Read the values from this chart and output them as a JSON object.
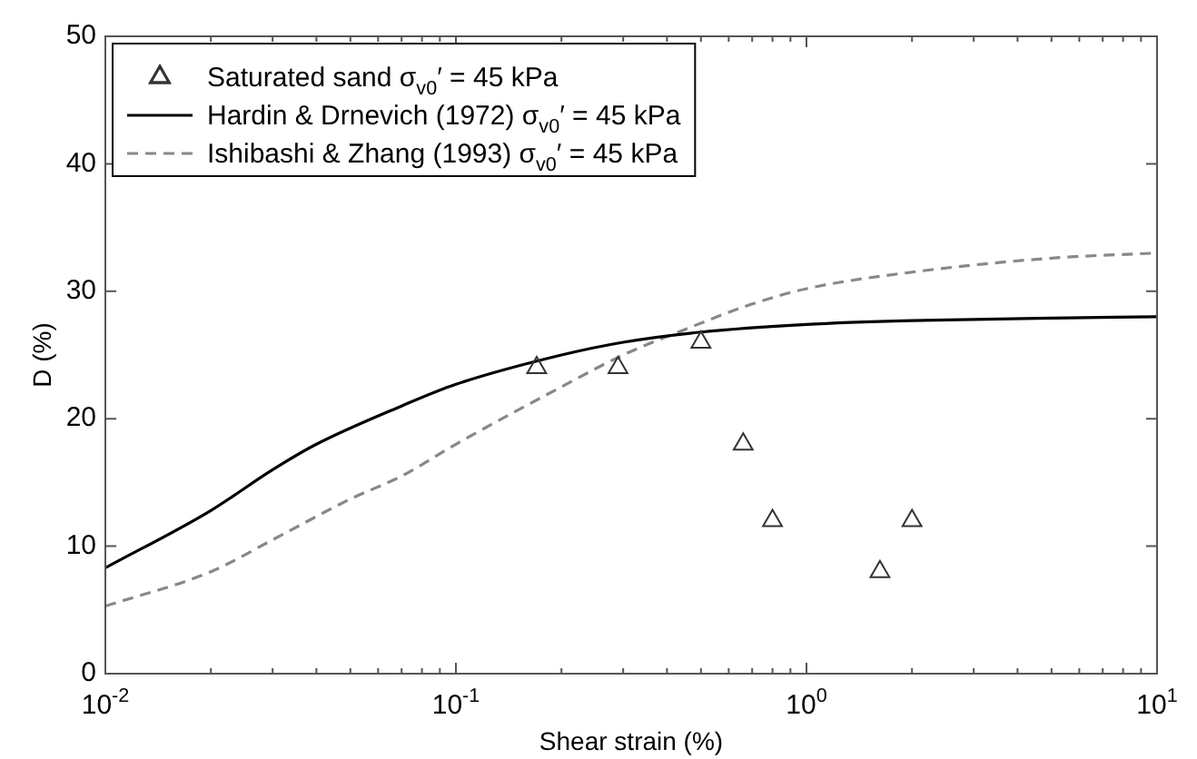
{
  "chart_data": {
    "type": "line",
    "xlabel": "Shear strain (%)",
    "ylabel": "D (%)",
    "log": "x",
    "xlim": [
      0.01,
      10
    ],
    "ylim": [
      0,
      50
    ],
    "xticks": [
      {
        "value": 0.01,
        "label": "10$^{-2}$"
      },
      {
        "value": 0.02,
        "label": null
      },
      {
        "value": 0.03,
        "label": null
      },
      {
        "value": 0.04,
        "label": null
      },
      {
        "value": 0.05,
        "label": null
      },
      {
        "value": 0.06,
        "label": null
      },
      {
        "value": 0.07,
        "label": null
      },
      {
        "value": 0.08,
        "label": null
      },
      {
        "value": 0.09,
        "label": null
      },
      {
        "value": 0.1,
        "label": "10$^{-1}$"
      },
      {
        "value": 0.2,
        "label": null
      },
      {
        "value": 0.3,
        "label": null
      },
      {
        "value": 0.4,
        "label": null
      },
      {
        "value": 0.5,
        "label": null
      },
      {
        "value": 0.6,
        "label": null
      },
      {
        "value": 0.7,
        "label": null
      },
      {
        "value": 0.8,
        "label": null
      },
      {
        "value": 0.9,
        "label": null
      },
      {
        "value": 1,
        "label": "10$^{0}$"
      },
      {
        "value": 2,
        "label": null
      },
      {
        "value": 3,
        "label": null
      },
      {
        "value": 4,
        "label": null
      },
      {
        "value": 5,
        "label": null
      },
      {
        "value": 6,
        "label": null
      },
      {
        "value": 7,
        "label": null
      },
      {
        "value": 8,
        "label": null
      },
      {
        "value": 9,
        "label": null
      },
      {
        "value": 10,
        "label": "10$^{1}$"
      }
    ],
    "yticks": [
      0,
      10,
      20,
      30,
      40,
      50
    ],
    "grid": false,
    "legend": "top left",
    "series": [
      {
        "name": "Saturated sand σ$_{v0}$′ = 45 kPa",
        "type": "scatter",
        "marker": "triangle",
        "color": "#333333",
        "x": [
          0.17,
          0.29,
          0.5,
          0.66,
          0.8,
          1.62,
          2.0
        ],
        "values": [
          24,
          24,
          26,
          18,
          12,
          8,
          12
        ]
      },
      {
        "name": "Hardin & Drnevich (1972) σ$_{v0}$′ = 45 kPa",
        "type": "line",
        "line_style": "solid",
        "marker": "none",
        "color": "#000000",
        "x": [
          0.01,
          0.02,
          0.03,
          0.04,
          0.07,
          0.1,
          0.2,
          0.3,
          0.5,
          1,
          2,
          5,
          10
        ],
        "values": [
          8.3,
          12.8,
          16,
          18,
          21,
          22.7,
          25,
          26,
          26.8,
          27.4,
          27.7,
          27.9,
          28
        ]
      },
      {
        "name": "Ishibashi & Zhang (1993) σ$_{v0}$′ = 45 kPa",
        "type": "line",
        "line_style": "dashed",
        "marker": "none",
        "color": "#888888",
        "x": [
          0.01,
          0.02,
          0.03,
          0.05,
          0.07,
          0.1,
          0.2,
          0.3,
          0.45,
          0.7,
          1,
          2,
          5,
          10
        ],
        "values": [
          5.3,
          8,
          10.5,
          13.7,
          15.5,
          18,
          22.5,
          25,
          27,
          29,
          30.2,
          31.5,
          32.6,
          33
        ]
      }
    ]
  }
}
